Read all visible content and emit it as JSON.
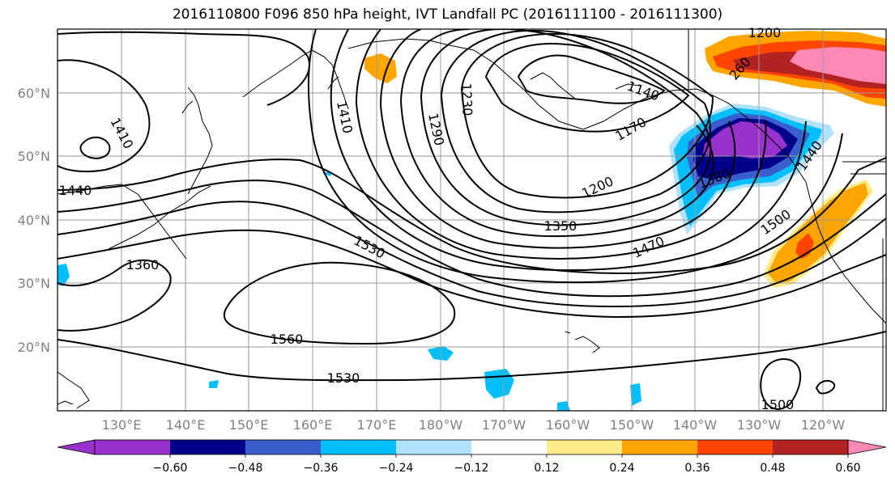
{
  "title": "2016110800 F096 850 hPa height, IVT Landfall PC (2016111100 - 2016111300)",
  "lat_labels": [
    "60°N",
    "50°N",
    "40°N",
    "30°N",
    "20°N"
  ],
  "lon_labels": [
    "130°E",
    "140°E",
    "150°E",
    "160°E",
    "170°E",
    "180°W",
    "170°W",
    "160°W",
    "150°W",
    "140°W",
    "130°W",
    "120°W"
  ],
  "contour_labels": [
    "1410",
    "1440",
    "1410",
    "1290",
    "1230",
    "1140",
    "1170",
    "1200",
    "1380",
    "1350",
    "1470",
    "1500",
    "1530",
    "1560",
    "1530",
    "1500",
    "1360",
    "1200",
    "260",
    "1440"
  ],
  "colorbar": {
    "colors": [
      "#9932cc",
      "#00008b",
      "#3a5fcd",
      "#00bfff",
      "#b0e2ff",
      "#ffffff",
      "#ffeb8a",
      "#ffa500",
      "#ff4500",
      "#b22222",
      "#ff89b4",
      "#ff89b4"
    ],
    "tick_labels": [
      "−0.60",
      "−0.48",
      "−0.36",
      "−0.24",
      "−0.12",
      "0.12",
      "0.24",
      "0.36",
      "0.48",
      "0.60"
    ]
  }
}
